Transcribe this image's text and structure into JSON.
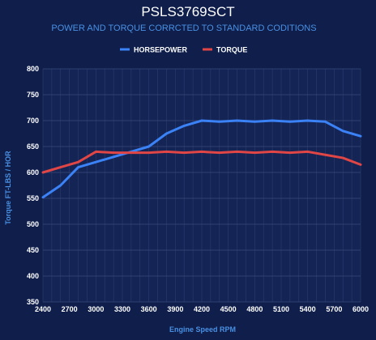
{
  "chart_data": {
    "type": "line",
    "title": "PSLS3769SCT",
    "subtitle": "POWER AND TORQUE CORRCTED TO STANDARD CODITIONS",
    "xlabel": "Engine Speed RPM",
    "ylabel": "Torque FT-LBS / HOR",
    "xlim": [
      2400,
      6000
    ],
    "ylim": [
      350,
      800
    ],
    "x_ticks": [
      "2400",
      "2700",
      "3000",
      "3300",
      "3600",
      "3900",
      "4200",
      "4500",
      "4800",
      "5100",
      "5400",
      "5700",
      "6000"
    ],
    "y_ticks": [
      "350",
      "400",
      "450",
      "500",
      "550",
      "600",
      "650",
      "700",
      "750",
      "800"
    ],
    "grid": true,
    "legend_position": "top-center",
    "x": [
      2400,
      2600,
      2800,
      3000,
      3200,
      3400,
      3600,
      3800,
      4000,
      4200,
      4400,
      4600,
      4800,
      5000,
      5200,
      5400,
      5600,
      5800,
      6000
    ],
    "series": [
      {
        "name": "HORSEPOWER",
        "color": "#3b82f6",
        "values": [
          552,
          575,
          610,
          620,
          630,
          640,
          650,
          675,
          690,
          700,
          698,
          700,
          698,
          700,
          698,
          700,
          698,
          680,
          670
        ]
      },
      {
        "name": "TORQUE",
        "color": "#e04646",
        "values": [
          600,
          610,
          620,
          640,
          638,
          638,
          638,
          640,
          638,
          640,
          638,
          640,
          638,
          640,
          638,
          640,
          634,
          628,
          615
        ]
      }
    ]
  }
}
